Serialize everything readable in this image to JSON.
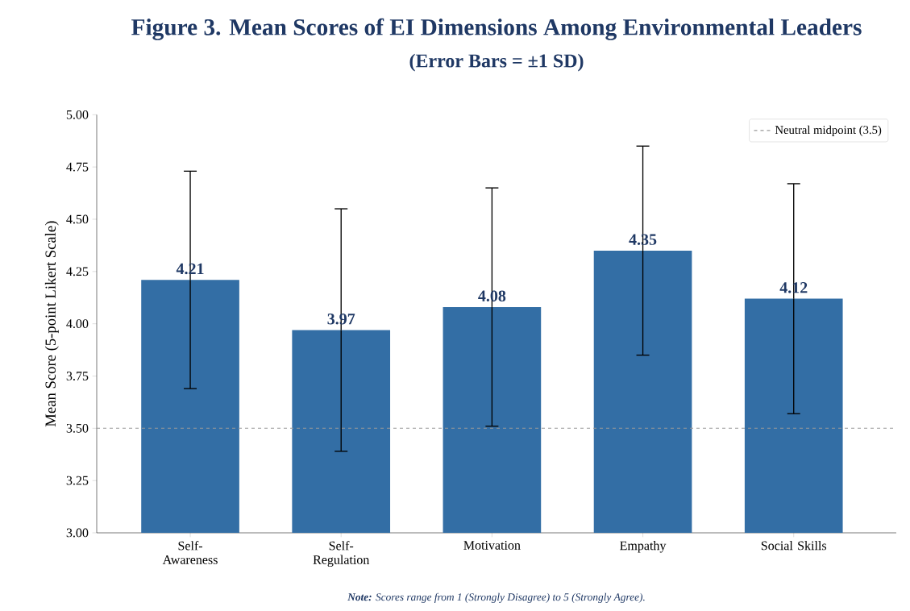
{
  "chart_data": {
    "type": "bar",
    "title": "Figure 3. Mean Scores of EI Dimensions Among Environmental Leaders",
    "subtitle": "(Error Bars = ±1 SD)",
    "ylabel": "Mean Score (5-point Likert Scale)",
    "categories": [
      "Self-Awareness",
      "Self-Regulation",
      "Motivation",
      "Empathy",
      "Social Skills"
    ],
    "values": [
      4.21,
      3.97,
      4.08,
      4.35,
      4.12
    ],
    "errors": [
      0.52,
      0.58,
      0.57,
      0.5,
      0.55
    ],
    "color": "#336ea5",
    "data_labels": true,
    "ylim": [
      3,
      5
    ],
    "yticks": [
      {
        "value": 3,
        "label": "3.00"
      },
      {
        "value": 3.25,
        "label": "3.25"
      },
      {
        "value": 3.5,
        "label": "3.50"
      },
      {
        "value": 3.75,
        "label": "3.75"
      },
      {
        "value": 4,
        "label": "4.00"
      },
      {
        "value": 4.25,
        "label": "4.25"
      },
      {
        "value": 4.5,
        "label": "4.50"
      },
      {
        "value": 4.75,
        "label": "4.75"
      },
      {
        "value": 5,
        "label": "5.00"
      }
    ],
    "ref_lines": [
      {
        "axis": "y",
        "value": 3.5,
        "label": "Neutral midpoint (3.5)",
        "color": "#999999",
        "line_style": "dashed"
      }
    ],
    "legend": "top right",
    "grid": false,
    "annotations": [
      "**Note:** Scores range from 1 (Strongly Disagree) to 5 (Strongly Agree)."
    ]
  }
}
